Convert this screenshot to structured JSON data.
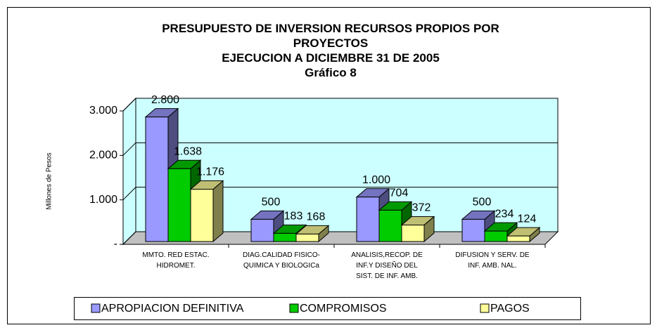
{
  "chart_data": {
    "type": "bar3d",
    "title": "PRESUPUESTO DE INVERSION RECURSOS PROPIOS POR\nPROYECTOS\nEJECUCION A DICIEMBRE 31 DE 2005\nGráfico 8",
    "y_label": "Millones de Pesos",
    "categories": [
      "MMTO. RED ESTAC.\nHIDROMET.",
      "DIAG.CALIDAD FISICO-\nQUIMICA Y BIOLOGICa",
      "ANALISIS,RECOP. DE\nINF.Y DISEÑO DEL\nSIST. DE INF. AMB.",
      "DIFUSION Y SERV. DE\nINF. AMB.  NAL."
    ],
    "series": [
      {
        "name": "APROPIACION DEFINITIVA",
        "color": "#9999ff",
        "values": [
          2800,
          500,
          1000,
          500
        ],
        "value_labels": [
          "2.800",
          "500",
          "1.000",
          "500"
        ]
      },
      {
        "name": "COMPROMISOS",
        "color": "#00cc00",
        "values": [
          1638,
          183,
          704,
          234
        ],
        "value_labels": [
          "1.638",
          "183",
          "704",
          "234"
        ]
      },
      {
        "name": "PAGOS",
        "color": "#ffff99",
        "values": [
          1176,
          168,
          372,
          124
        ],
        "value_labels": [
          "1.176",
          "168",
          "372",
          "124"
        ]
      }
    ],
    "ylim": [
      0,
      3000
    ],
    "yticks": [
      {
        "value": 0,
        "label": "-"
      },
      {
        "value": 1000,
        "label": "1.000"
      },
      {
        "value": 2000,
        "label": "2.000"
      },
      {
        "value": 3000,
        "label": "3.000"
      }
    ],
    "grid": true,
    "legend": "bottom",
    "wall_color": "#ccffff"
  }
}
